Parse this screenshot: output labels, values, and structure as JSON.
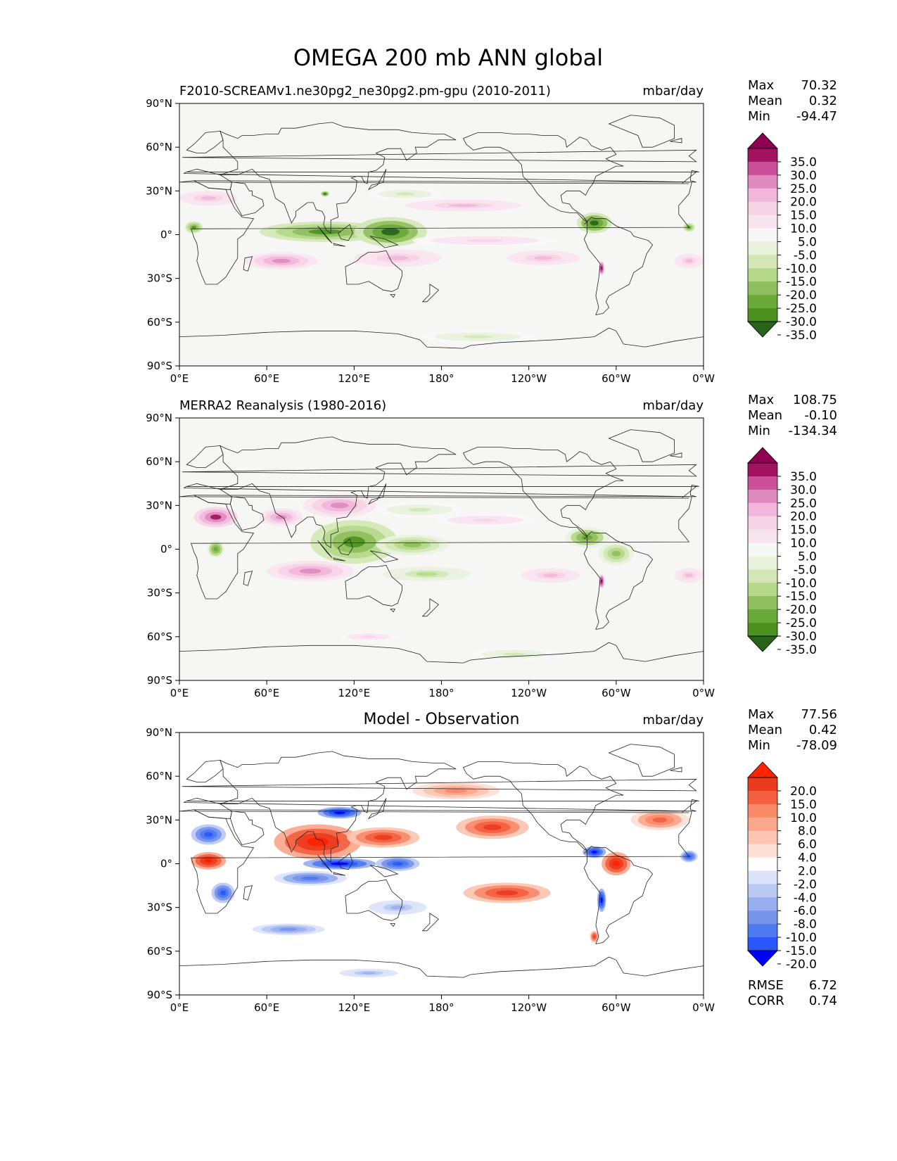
{
  "title": "OMEGA 200 mb ANN global",
  "colors": {
    "land_bg": "#f6f6f4",
    "piyg": [
      "#276419",
      "#4d9221",
      "#6aa93a",
      "#8fbf5d",
      "#b5d889",
      "#d2e7b5",
      "#e8f2dc",
      "#f7f7f7",
      "#f8e4ef",
      "#f6d4e6",
      "#f1b6d9",
      "#e08bc0",
      "#cc4f99",
      "#a3125e",
      "#8e0152"
    ],
    "diff": [
      "#0000ff",
      "#2a57ff",
      "#4e7af0",
      "#7694ea",
      "#98aef0",
      "#bac8f4",
      "#dce4fa",
      "#ffffff",
      "#fde0d6",
      "#fcc4b1",
      "#fca68c",
      "#f98a6a",
      "#f3603f",
      "#ea3b1d",
      "#ff2200"
    ]
  },
  "chart_data": [
    {
      "type": "heatmap",
      "panel": "test",
      "title": "F2010-SCREAMv1.ne30pg2_ne30pg2.pm-gpu (2010-2011)",
      "units": "mbar/day",
      "stats": {
        "max_label": "Max",
        "max": "70.32",
        "mean_label": "Mean",
        "mean": "0.32",
        "min_label": "Min",
        "min": "-94.47"
      },
      "x_ticks": [
        "0°E",
        "60°E",
        "120°E",
        "180°",
        "120°W",
        "60°W",
        "0°W"
      ],
      "y_ticks": [
        "90°N",
        "60°N",
        "30°N",
        "0°",
        "30°S",
        "60°S",
        "90°S"
      ],
      "xlim": [
        0,
        360
      ],
      "ylim": [
        -90,
        90
      ],
      "colorbar_levels": [
        "35.0",
        "30.0",
        "25.0",
        "20.0",
        "15.0",
        "10.0",
        "5.0",
        "-5.0",
        "-10.0",
        "-15.0",
        "-20.0",
        "-25.0",
        "-30.0",
        "-35.0"
      ],
      "colormap": "piyg",
      "features": [
        {
          "lon": 100,
          "lat": 2,
          "value": -30,
          "rx": 45,
          "ry": 7
        },
        {
          "lon": 145,
          "lat": 2,
          "value": -35,
          "rx": 25,
          "ry": 10
        },
        {
          "lon": 285,
          "lat": 8,
          "value": -35,
          "rx": 12,
          "ry": 7
        },
        {
          "lon": 350,
          "lat": 5,
          "value": -30,
          "rx": 4,
          "ry": 3
        },
        {
          "lon": 10,
          "lat": 5,
          "value": -30,
          "rx": 6,
          "ry": 4
        },
        {
          "lon": 100,
          "lat": 28,
          "value": -35,
          "rx": 3,
          "ry": 2
        },
        {
          "lon": 155,
          "lat": 28,
          "value": -10,
          "rx": 25,
          "ry": 4
        },
        {
          "lon": 195,
          "lat": 20,
          "value": 15,
          "rx": 40,
          "ry": 4
        },
        {
          "lon": 210,
          "lat": -4,
          "value": 10,
          "rx": 50,
          "ry": 4
        },
        {
          "lon": 70,
          "lat": -18,
          "value": 20,
          "rx": 25,
          "ry": 6
        },
        {
          "lon": 150,
          "lat": -16,
          "value": 15,
          "rx": 30,
          "ry": 6
        },
        {
          "lon": 250,
          "lat": -16,
          "value": 15,
          "rx": 25,
          "ry": 5
        },
        {
          "lon": 350,
          "lat": -18,
          "value": 15,
          "rx": 10,
          "ry": 5
        },
        {
          "lon": 290,
          "lat": -23,
          "value": 35,
          "rx": 2,
          "ry": 5
        },
        {
          "lon": 20,
          "lat": 25,
          "value": 15,
          "rx": 20,
          "ry": 5
        },
        {
          "lon": 205,
          "lat": -70,
          "value": -10,
          "rx": 40,
          "ry": 4
        }
      ]
    },
    {
      "type": "heatmap",
      "panel": "reference",
      "title": "MERRA2 Reanalysis (1980-2016)",
      "units": "mbar/day",
      "stats": {
        "max_label": "Max",
        "max": "108.75",
        "mean_label": "Mean",
        "mean": "-0.10",
        "min_label": "Min",
        "min": "-134.34"
      },
      "x_ticks": [
        "0°E",
        "60°E",
        "120°E",
        "180°",
        "120°W",
        "60°W",
        "0°W"
      ],
      "y_ticks": [
        "90°N",
        "60°N",
        "30°N",
        "0°",
        "30°S",
        "60°S",
        "90°S"
      ],
      "xlim": [
        0,
        360
      ],
      "ylim": [
        -90,
        90
      ],
      "colorbar_levels": [
        "35.0",
        "30.0",
        "25.0",
        "20.0",
        "15.0",
        "10.0",
        "5.0",
        "-5.0",
        "-10.0",
        "-15.0",
        "-20.0",
        "-25.0",
        "-30.0",
        "-35.0"
      ],
      "colormap": "piyg",
      "features": [
        {
          "lon": 120,
          "lat": 5,
          "value": -30,
          "rx": 30,
          "ry": 15
        },
        {
          "lon": 160,
          "lat": 3,
          "value": -20,
          "rx": 25,
          "ry": 7
        },
        {
          "lon": 280,
          "lat": 8,
          "value": -25,
          "rx": 15,
          "ry": 7
        },
        {
          "lon": 300,
          "lat": -3,
          "value": -20,
          "rx": 12,
          "ry": 8
        },
        {
          "lon": 25,
          "lat": 0,
          "value": -25,
          "rx": 6,
          "ry": 6
        },
        {
          "lon": 25,
          "lat": 22,
          "value": 30,
          "rx": 15,
          "ry": 7
        },
        {
          "lon": 70,
          "lat": 22,
          "value": 20,
          "rx": 15,
          "ry": 6
        },
        {
          "lon": 110,
          "lat": 30,
          "value": 20,
          "rx": 25,
          "ry": 8
        },
        {
          "lon": 165,
          "lat": 27,
          "value": -10,
          "rx": 30,
          "ry": 5
        },
        {
          "lon": 210,
          "lat": 20,
          "value": 10,
          "rx": 35,
          "ry": 4
        },
        {
          "lon": 170,
          "lat": -17,
          "value": -15,
          "rx": 30,
          "ry": 5
        },
        {
          "lon": 90,
          "lat": -15,
          "value": 20,
          "rx": 30,
          "ry": 7
        },
        {
          "lon": 255,
          "lat": -18,
          "value": 15,
          "rx": 20,
          "ry": 5
        },
        {
          "lon": 350,
          "lat": -18,
          "value": 15,
          "rx": 10,
          "ry": 5
        },
        {
          "lon": 290,
          "lat": -22,
          "value": 35,
          "rx": 2,
          "ry": 5
        },
        {
          "lon": 230,
          "lat": -72,
          "value": -10,
          "rx": 30,
          "ry": 4
        },
        {
          "lon": 130,
          "lat": -60,
          "value": 10,
          "rx": 20,
          "ry": 3
        }
      ]
    },
    {
      "type": "heatmap",
      "panel": "difference",
      "title": "Model - Observation",
      "units": "mbar/day",
      "stats": {
        "max_label": "Max",
        "max": "77.56",
        "mean_label": "Mean",
        "mean": "0.42",
        "min_label": "Min",
        "min": "-78.09"
      },
      "extra_stats": {
        "rmse_label": "RMSE",
        "rmse": "6.72",
        "corr_label": "CORR",
        "corr": "0.74"
      },
      "x_ticks": [
        "0°E",
        "60°E",
        "120°E",
        "180°",
        "120°W",
        "60°W",
        "0°W"
      ],
      "y_ticks": [
        "90°N",
        "60°N",
        "30°N",
        "0°",
        "30°S",
        "60°S",
        "90°S"
      ],
      "xlim": [
        0,
        360
      ],
      "ylim": [
        -90,
        90
      ],
      "colorbar_levels": [
        "20.0",
        "15.0",
        "10.0",
        "8.0",
        "6.0",
        "4.0",
        "2.0",
        "-2.0",
        "-4.0",
        "-6.0",
        "-8.0",
        "-10.0",
        "-15.0",
        "-20.0"
      ],
      "colormap": "diff",
      "features": [
        {
          "lon": 95,
          "lat": 15,
          "value": 20,
          "rx": 30,
          "ry": 12
        },
        {
          "lon": 140,
          "lat": 18,
          "value": 15,
          "rx": 25,
          "ry": 7
        },
        {
          "lon": 215,
          "lat": 25,
          "value": 15,
          "rx": 25,
          "ry": 8
        },
        {
          "lon": 20,
          "lat": 2,
          "value": 20,
          "rx": 12,
          "ry": 6
        },
        {
          "lon": 20,
          "lat": 20,
          "value": -15,
          "rx": 12,
          "ry": 7
        },
        {
          "lon": 110,
          "lat": 0,
          "value": -20,
          "rx": 25,
          "ry": 4
        },
        {
          "lon": 150,
          "lat": 0,
          "value": -15,
          "rx": 15,
          "ry": 5
        },
        {
          "lon": 285,
          "lat": 8,
          "value": -20,
          "rx": 8,
          "ry": 4
        },
        {
          "lon": 300,
          "lat": 0,
          "value": 20,
          "rx": 10,
          "ry": 8
        },
        {
          "lon": 350,
          "lat": 5,
          "value": -15,
          "rx": 6,
          "ry": 4
        },
        {
          "lon": 225,
          "lat": -20,
          "value": 15,
          "rx": 30,
          "ry": 7
        },
        {
          "lon": 90,
          "lat": -10,
          "value": -10,
          "rx": 25,
          "ry": 5
        },
        {
          "lon": 30,
          "lat": -20,
          "value": -15,
          "rx": 8,
          "ry": 7
        },
        {
          "lon": 110,
          "lat": 35,
          "value": -20,
          "rx": 15,
          "ry": 4
        },
        {
          "lon": 150,
          "lat": -30,
          "value": -6,
          "rx": 20,
          "ry": 5
        },
        {
          "lon": 75,
          "lat": -45,
          "value": -8,
          "rx": 25,
          "ry": 4
        },
        {
          "lon": 130,
          "lat": -75,
          "value": -6,
          "rx": 20,
          "ry": 3
        },
        {
          "lon": 190,
          "lat": 50,
          "value": 8,
          "rx": 30,
          "ry": 6
        },
        {
          "lon": 330,
          "lat": 30,
          "value": 10,
          "rx": 20,
          "ry": 7
        },
        {
          "lon": 290,
          "lat": -25,
          "value": -20,
          "rx": 3,
          "ry": 8
        },
        {
          "lon": 285,
          "lat": -50,
          "value": 15,
          "rx": 3,
          "ry": 4
        }
      ]
    }
  ]
}
